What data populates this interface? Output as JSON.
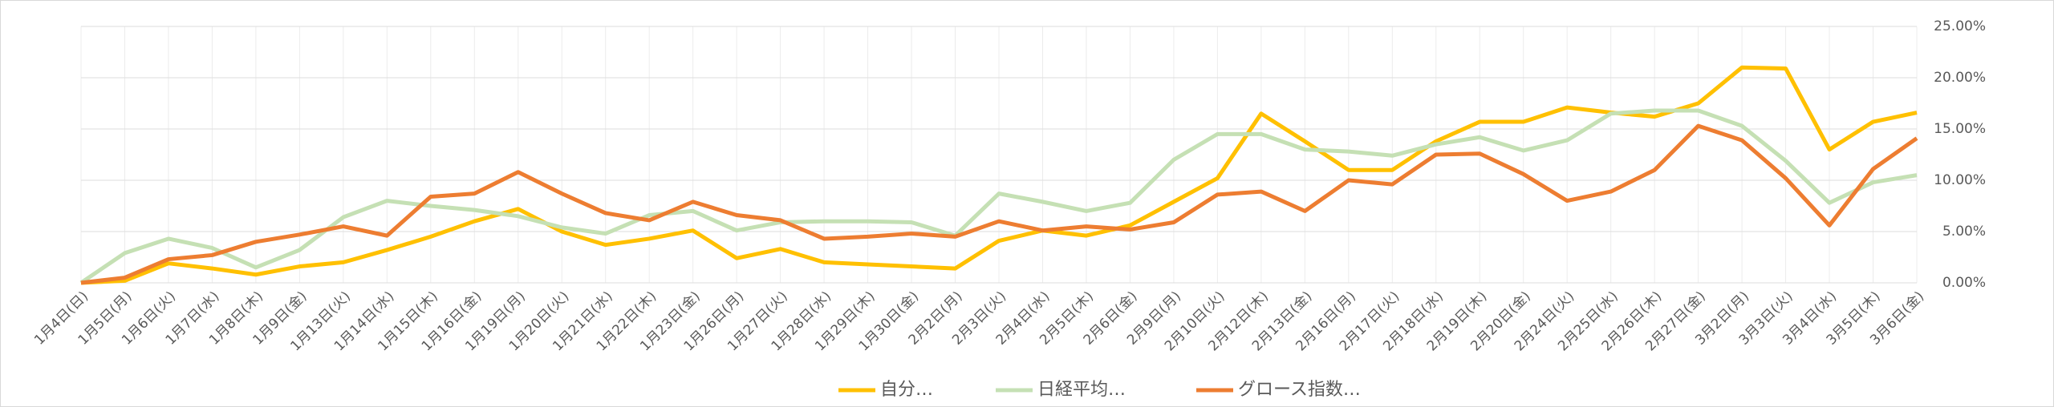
{
  "chart_data": {
    "type": "line",
    "categories": [
      "1月4日(日)",
      "1月5日(月)",
      "1月6日(火)",
      "1月7日(水)",
      "1月8日(木)",
      "1月9日(金)",
      "1月13日(火)",
      "1月14日(水)",
      "1月15日(木)",
      "1月16日(金)",
      "1月19日(月)",
      "1月20日(火)",
      "1月21日(水)",
      "1月22日(木)",
      "1月23日(金)",
      "1月26日(月)",
      "1月27日(火)",
      "1月28日(水)",
      "1月29日(木)",
      "1月30日(金)",
      "2月2日(月)",
      "2月3日(火)",
      "2月4日(水)",
      "2月5日(木)",
      "2月6日(金)",
      "2月9日(月)",
      "2月10日(火)",
      "2月12日(木)",
      "2月13日(金)",
      "2月16日(月)",
      "2月17日(火)",
      "2月18日(水)",
      "2月19日(木)",
      "2月20日(金)",
      "2月24日(火)",
      "2月25日(水)",
      "2月26日(木)",
      "2月27日(金)",
      "3月2日(月)",
      "3月3日(火)",
      "3月4日(水)",
      "3月5日(木)",
      "3月6日(金)"
    ],
    "series": [
      {
        "name": "自分…",
        "color": "#ffc000",
        "values": [
          0,
          0.2,
          1.9,
          1.4,
          0.8,
          1.6,
          2.0,
          3.2,
          4.5,
          6.0,
          7.2,
          5.0,
          3.7,
          4.3,
          5.1,
          2.4,
          3.3,
          2.0,
          1.8,
          1.6,
          1.4,
          4.1,
          5.1,
          4.6,
          5.6,
          7.9,
          10.2,
          16.5,
          13.8,
          11.0,
          11.0,
          13.8,
          15.7,
          15.7,
          17.1,
          16.6,
          16.2,
          17.5,
          21.0,
          20.9,
          13.0,
          15.7,
          16.6
        ]
      },
      {
        "name": "日経平均…",
        "color": "#c5e0b4",
        "values": [
          0,
          2.9,
          4.3,
          3.4,
          1.5,
          3.2,
          6.4,
          8.0,
          7.5,
          7.1,
          6.5,
          5.4,
          4.8,
          6.6,
          7.0,
          5.1,
          5.9,
          6.0,
          6.0,
          5.9,
          4.6,
          8.7,
          7.9,
          7.0,
          7.8,
          12.0,
          14.5,
          14.5,
          13.0,
          12.8,
          12.4,
          13.5,
          14.2,
          12.9,
          13.9,
          16.5,
          16.8,
          16.8,
          15.3,
          11.9,
          7.8,
          9.8,
          10.5
        ]
      },
      {
        "name": "グロース指数…",
        "color": "#ed7d31",
        "values": [
          0,
          0.5,
          2.3,
          2.7,
          4.0,
          4.7,
          5.5,
          4.6,
          8.4,
          8.7,
          10.8,
          8.7,
          6.8,
          6.1,
          7.9,
          6.6,
          6.1,
          4.3,
          4.5,
          4.8,
          4.5,
          6.0,
          5.1,
          5.5,
          5.2,
          5.9,
          8.6,
          8.9,
          7.0,
          10.0,
          9.6,
          12.5,
          12.6,
          10.6,
          8.0,
          8.9,
          11.0,
          15.3,
          13.9,
          10.2,
          5.6,
          11.1,
          14.1
        ]
      }
    ],
    "ylim": [
      0,
      25
    ],
    "yticks": [
      {
        "value": 0,
        "label": "0.00%"
      },
      {
        "value": 5,
        "label": "5.00%"
      },
      {
        "value": 10,
        "label": "10.00%"
      },
      {
        "value": 15,
        "label": "15.00%"
      },
      {
        "value": 20,
        "label": "20.00%"
      },
      {
        "value": 25,
        "label": "25.00%"
      }
    ],
    "grid": true,
    "legend": "bottom"
  }
}
